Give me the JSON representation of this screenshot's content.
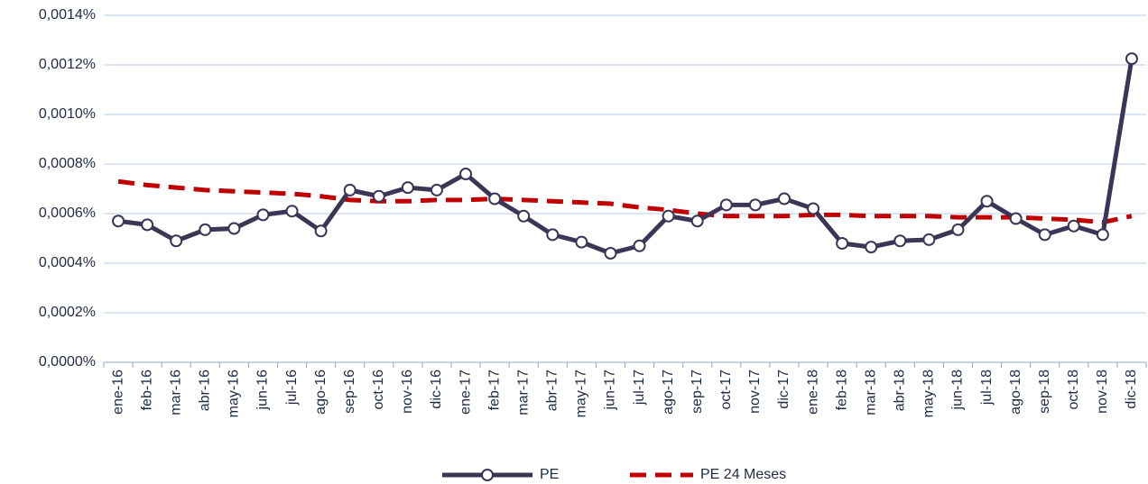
{
  "chart_data": {
    "type": "line",
    "categories": [
      "ene-16",
      "feb-16",
      "mar-16",
      "abr-16",
      "may-16",
      "jun-16",
      "jul-16",
      "ago-16",
      "sep-16",
      "oct-16",
      "nov-16",
      "dic-16",
      "ene-17",
      "feb-17",
      "mar-17",
      "abr-17",
      "may-17",
      "jun-17",
      "jul-17",
      "ago-17",
      "sep-17",
      "oct-17",
      "nov-17",
      "dic-17",
      "ene-18",
      "feb-18",
      "mar-18",
      "abr-18",
      "may-18",
      "jun-18",
      "jul-18",
      "ago-18",
      "sep-18",
      "oct-18",
      "nov-18",
      "dic-18"
    ],
    "series": [
      {
        "name": "PE",
        "color": "#3d3556",
        "style": "solid",
        "markers": true,
        "values": [
          0.00057,
          0.000555,
          0.00049,
          0.000535,
          0.00054,
          0.000595,
          0.00061,
          0.00053,
          0.000695,
          0.00067,
          0.000705,
          0.000695,
          0.00076,
          0.00066,
          0.00059,
          0.000515,
          0.000485,
          0.00044,
          0.00047,
          0.00059,
          0.00057,
          0.000635,
          0.000635,
          0.00066,
          0.00062,
          0.00048,
          0.000465,
          0.00049,
          0.000495,
          0.000535,
          0.00065,
          0.00058,
          0.000515,
          0.00055,
          0.000515,
          0.001225
        ]
      },
      {
        "name": "PE 24 Meses",
        "color": "#c00000",
        "style": "dashed",
        "markers": false,
        "values": [
          0.00073,
          0.000715,
          0.000705,
          0.000695,
          0.00069,
          0.000685,
          0.00068,
          0.00067,
          0.000655,
          0.00065,
          0.00065,
          0.000655,
          0.000655,
          0.00066,
          0.000655,
          0.00065,
          0.000645,
          0.00064,
          0.000625,
          0.000615,
          0.0006,
          0.00059,
          0.00059,
          0.00059,
          0.000595,
          0.000595,
          0.00059,
          0.00059,
          0.00059,
          0.000585,
          0.000585,
          0.000585,
          0.00058,
          0.000575,
          0.000565,
          0.00059
        ]
      }
    ],
    "ylim": [
      0,
      0.0014
    ],
    "yticks": [
      {
        "value": 0,
        "label": "0,0000%"
      },
      {
        "value": 0.0002,
        "label": "0,0002%"
      },
      {
        "value": 0.0004,
        "label": "0,0004%"
      },
      {
        "value": 0.0006,
        "label": "0,0006%"
      },
      {
        "value": 0.0008,
        "label": "0,0008%"
      },
      {
        "value": 0.001,
        "label": "0,0010%"
      },
      {
        "value": 0.0012,
        "label": "0,0012%"
      },
      {
        "value": 0.0014,
        "label": "0,0014%"
      }
    ],
    "grid": true,
    "legend": "bottom"
  }
}
